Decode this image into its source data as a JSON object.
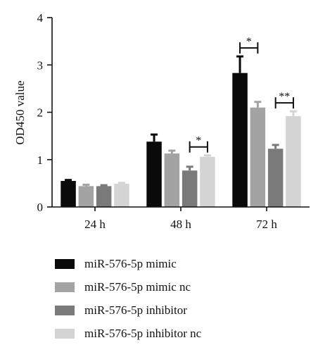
{
  "chart_data": {
    "type": "bar",
    "categories": [
      "24 h",
      "48 h",
      "72 h"
    ],
    "ylabel": "OD450 value",
    "xlabel": "",
    "ylim": [
      0,
      4
    ],
    "yticks": [
      0,
      1,
      2,
      3,
      4
    ],
    "grid": false,
    "legend_position": "bottom",
    "series": [
      {
        "name": "miR-576-5p mimic",
        "color": "#0a0a0a",
        "values": [
          0.55,
          1.38,
          2.83
        ],
        "errors": [
          0.02,
          0.15,
          0.35
        ]
      },
      {
        "name": "miR-576-5p mimic nc",
        "color": "#a3a3a3",
        "values": [
          0.44,
          1.13,
          2.1
        ],
        "errors": [
          0.03,
          0.06,
          0.12
        ]
      },
      {
        "name": "miR-576-5p inhibitor",
        "color": "#7a7a7a",
        "values": [
          0.44,
          0.77,
          1.23
        ],
        "errors": [
          0.02,
          0.08,
          0.08
        ]
      },
      {
        "name": "miR-576-5p inhibitor nc",
        "color": "#d4d4d4",
        "values": [
          0.49,
          1.06,
          1.92
        ],
        "errors": [
          0.02,
          0.03,
          0.1
        ]
      }
    ],
    "annotations": [
      {
        "category": 1,
        "from_series": 2,
        "to_series": 3,
        "label": "*"
      },
      {
        "category": 2,
        "from_series": 0,
        "to_series": 1,
        "label": "*"
      },
      {
        "category": 2,
        "from_series": 2,
        "to_series": 3,
        "label": "**"
      }
    ]
  }
}
